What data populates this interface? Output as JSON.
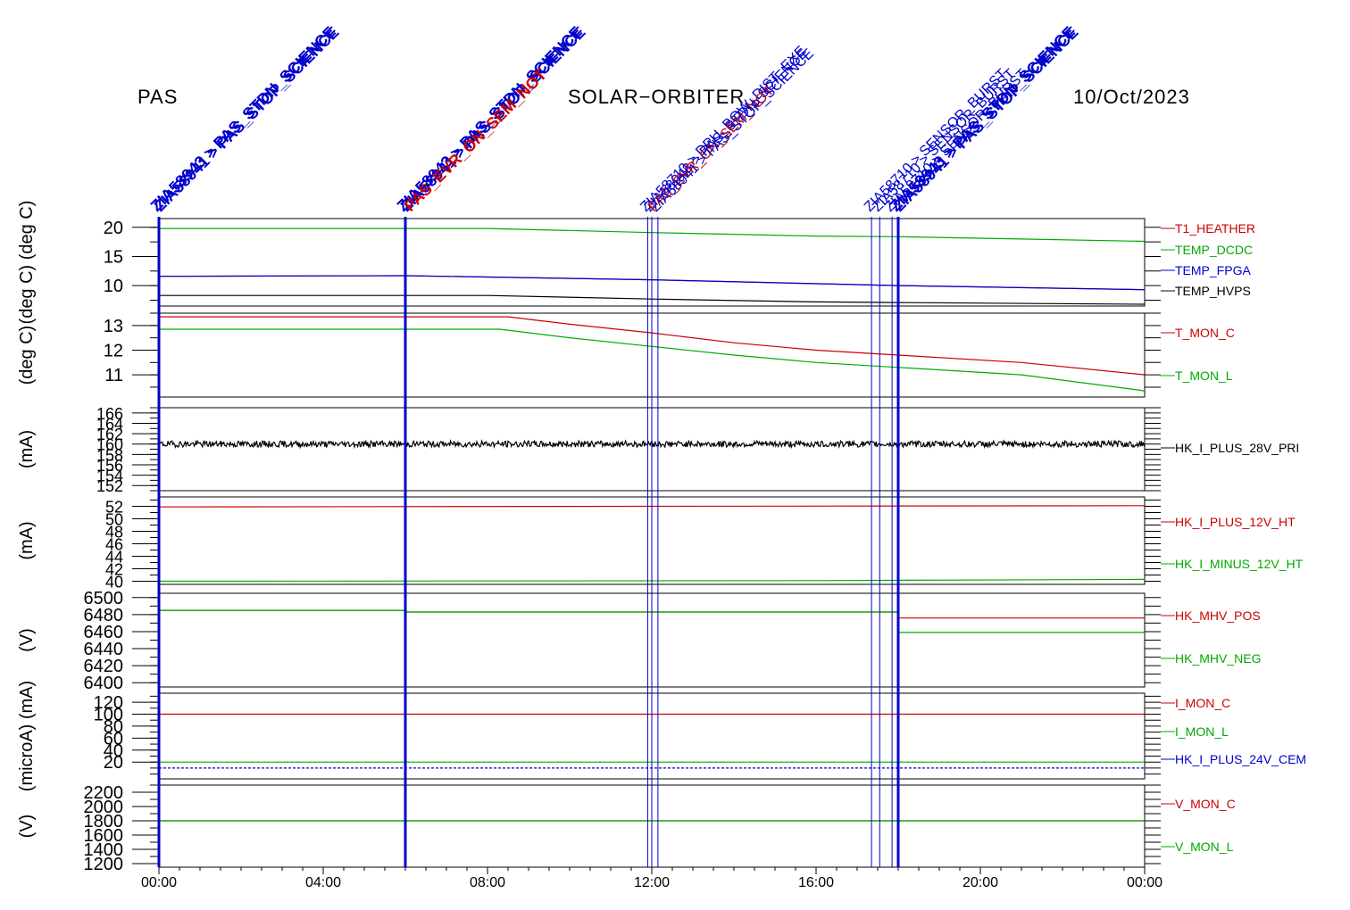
{
  "header": {
    "left": "PAS",
    "center": "SOLAR−ORBITER",
    "right": "10/Oct/2023"
  },
  "colors": {
    "red": "#cc0000",
    "green": "#00aa00",
    "blue": "#0000cc",
    "black": "#000000",
    "event_blue": "#0000cc"
  },
  "chart_data": {
    "type": "line",
    "x_axis": {
      "range_hours": [
        0,
        24
      ],
      "ticks": [
        {
          "h": 0,
          "label": "00:00"
        },
        {
          "h": 4,
          "label": "04:00"
        },
        {
          "h": 8,
          "label": "08:00"
        },
        {
          "h": 12,
          "label": "12:00"
        },
        {
          "h": 16,
          "label": "16:00"
        },
        {
          "h": 20,
          "label": "20:00"
        },
        {
          "h": 24,
          "label": "00:00"
        }
      ]
    },
    "events": [
      {
        "h": 0.0,
        "labels": [
          "ZIA58943 > PAS_STDN_SCIENCE",
          "ZIA58941 > PAS_STOP_SCIENCE"
        ],
        "thick": true
      },
      {
        "h": 6.0,
        "labels": [
          "ZIA58943 > PAS_STDN_SCIENCE",
          "ZIA58941 > PAS_STOP_SCIENCE",
          "PAS_EVR_ON_SEM_NOT"
        ],
        "thick": true
      },
      {
        "h": 11.9,
        "labels": [
          "ZIA58710 > DPU_BOW_DIST_EXE"
        ],
        "thick": false
      },
      {
        "h": 12.0,
        "labels": [
          "ZIA58943 > PAS_STDN_SCIENCE",
          "PAS_EVR_ON_SEM_NOT"
        ],
        "thick": false
      },
      {
        "h": 12.15,
        "labels": [
          "ZIA58941 > PAS_STOP_SCIENCE"
        ],
        "thick": false
      },
      {
        "h": 17.35,
        "labels": [
          "ZIA58710 > SENSOR_BURST"
        ],
        "thick": false
      },
      {
        "h": 17.55,
        "labels": [
          "ZIA58710 > SENSOR_BURST"
        ],
        "thick": false
      },
      {
        "h": 17.85,
        "labels": [
          "ZIA58710 > SENSOR_BURST"
        ],
        "thick": false
      },
      {
        "h": 18.0,
        "labels": [
          "ZIA58943 > PAS_STDN_SCIENCE",
          "ZIA58941 > PAS_STOP_SCIENCE"
        ],
        "thick": true
      }
    ],
    "panels": [
      {
        "ylabel": "(deg C) (deg C)",
        "yrange": [
          6.5,
          21.5
        ],
        "ticks": [
          10,
          15,
          20
        ],
        "series": [
          {
            "name": "T1_HEATHER",
            "color": "red",
            "points": [
              [
                0,
                11.6
              ],
              [
                6,
                11.7
              ],
              [
                12,
                11.0
              ],
              [
                18,
                10.0
              ],
              [
                24,
                9.3
              ]
            ]
          },
          {
            "name": "TEMP_DCDC",
            "color": "green",
            "points": [
              [
                0,
                19.8
              ],
              [
                8,
                19.8
              ],
              [
                12,
                19.1
              ],
              [
                16,
                18.5
              ],
              [
                18,
                18.4
              ],
              [
                24,
                17.6
              ]
            ]
          },
          {
            "name": "TEMP_FPGA",
            "color": "blue",
            "points": [
              [
                0,
                11.6
              ],
              [
                6,
                11.7
              ],
              [
                12,
                11.0
              ],
              [
                18,
                10.0
              ],
              [
                24,
                9.3
              ]
            ]
          },
          {
            "name": "TEMP_HVPS",
            "color": "black",
            "points": [
              [
                0,
                8.3
              ],
              [
                8,
                8.3
              ],
              [
                12,
                7.7
              ],
              [
                16,
                7.2
              ],
              [
                18,
                7.1
              ],
              [
                24,
                6.8
              ]
            ]
          }
        ]
      },
      {
        "ylabel": "(deg C)",
        "yrange": [
          10.1,
          13.5
        ],
        "ticks": [
          11,
          12,
          13
        ],
        "series": [
          {
            "name": "T_MON_C",
            "color": "red",
            "points": [
              [
                0,
                13.35
              ],
              [
                8.5,
                13.35
              ],
              [
                10,
                13.05
              ],
              [
                12,
                12.7
              ],
              [
                14,
                12.3
              ],
              [
                16,
                12.0
              ],
              [
                18,
                11.8
              ],
              [
                21,
                11.5
              ],
              [
                24,
                11.0
              ]
            ]
          },
          {
            "name": "T_MON_L",
            "color": "green",
            "points": [
              [
                0,
                12.85
              ],
              [
                8.3,
                12.85
              ],
              [
                10,
                12.5
              ],
              [
                12,
                12.15
              ],
              [
                14,
                11.8
              ],
              [
                16,
                11.5
              ],
              [
                18,
                11.3
              ],
              [
                21,
                11.0
              ],
              [
                24,
                10.35
              ]
            ]
          }
        ]
      },
      {
        "ylabel": "(mA)",
        "yrange": [
          151,
          167
        ],
        "ticks": [
          152,
          154,
          156,
          158,
          160,
          162,
          164,
          166
        ],
        "series": [
          {
            "name": "HK_I_PLUS_28V_PRI",
            "color": "black",
            "noisy": true,
            "points": [
              [
                0,
                160
              ],
              [
                24,
                160
              ]
            ]
          }
        ]
      },
      {
        "ylabel": "(mA)",
        "yrange": [
          39.5,
          53.5
        ],
        "ticks": [
          40,
          42,
          44,
          46,
          48,
          50,
          52
        ],
        "series": [
          {
            "name": "HK_I_PLUS_12V_HT",
            "color": "red",
            "points": [
              [
                0,
                51.9
              ],
              [
                24,
                52.1
              ]
            ]
          },
          {
            "name": "HK_I_MINUS_12V_HT",
            "color": "green",
            "points": [
              [
                0,
                40.0
              ],
              [
                16,
                40.1
              ],
              [
                24,
                40.3
              ]
            ]
          }
        ]
      },
      {
        "ylabel": "(V)",
        "yrange": [
          6395,
          6505
        ],
        "ticks": [
          6400,
          6420,
          6440,
          6460,
          6480,
          6500
        ],
        "series": [
          {
            "name": "HK_MHV_POS",
            "color": "red",
            "points": [
              [
                0,
                6485
              ],
              [
                6,
                6485
              ],
              [
                6.01,
                6483
              ],
              [
                18,
                6483
              ],
              [
                18.01,
                6476
              ],
              [
                24,
                6476
              ]
            ]
          },
          {
            "name": "HK_MHV_NEG",
            "color": "green",
            "points": [
              [
                0,
                6485
              ],
              [
                6,
                6485
              ],
              [
                6.01,
                6483
              ],
              [
                18,
                6483
              ],
              [
                18.01,
                6459
              ],
              [
                24,
                6459
              ]
            ]
          }
        ]
      },
      {
        "ylabel": "(microA) (mA)",
        "yrange": [
          -8,
          135
        ],
        "ticks": [
          20,
          40,
          60,
          80,
          100,
          120
        ],
        "series": [
          {
            "name": "I_MON_C",
            "color": "red",
            "points": [
              [
                0,
                100
              ],
              [
                24,
                100
              ]
            ]
          },
          {
            "name": "I_MON_L",
            "color": "green",
            "points": [
              [
                0,
                20
              ],
              [
                24,
                20
              ]
            ]
          },
          {
            "name": "HK_I_PLUS_24V_CEM",
            "color": "blue",
            "dashed": true,
            "points": [
              [
                0,
                10
              ],
              [
                24,
                10
              ]
            ]
          }
        ]
      },
      {
        "ylabel": "(V)",
        "yrange": [
          1150,
          2300
        ],
        "ticks": [
          1200,
          1400,
          1600,
          1800,
          2000,
          2200
        ],
        "series": [
          {
            "name": "V_MON_C",
            "color": "red",
            "points": [
              [
                0,
                1800
              ],
              [
                24,
                1800
              ]
            ]
          },
          {
            "name": "V_MON_L",
            "color": "green",
            "points": [
              [
                0,
                1800
              ],
              [
                24,
                1800
              ]
            ]
          }
        ]
      }
    ]
  }
}
